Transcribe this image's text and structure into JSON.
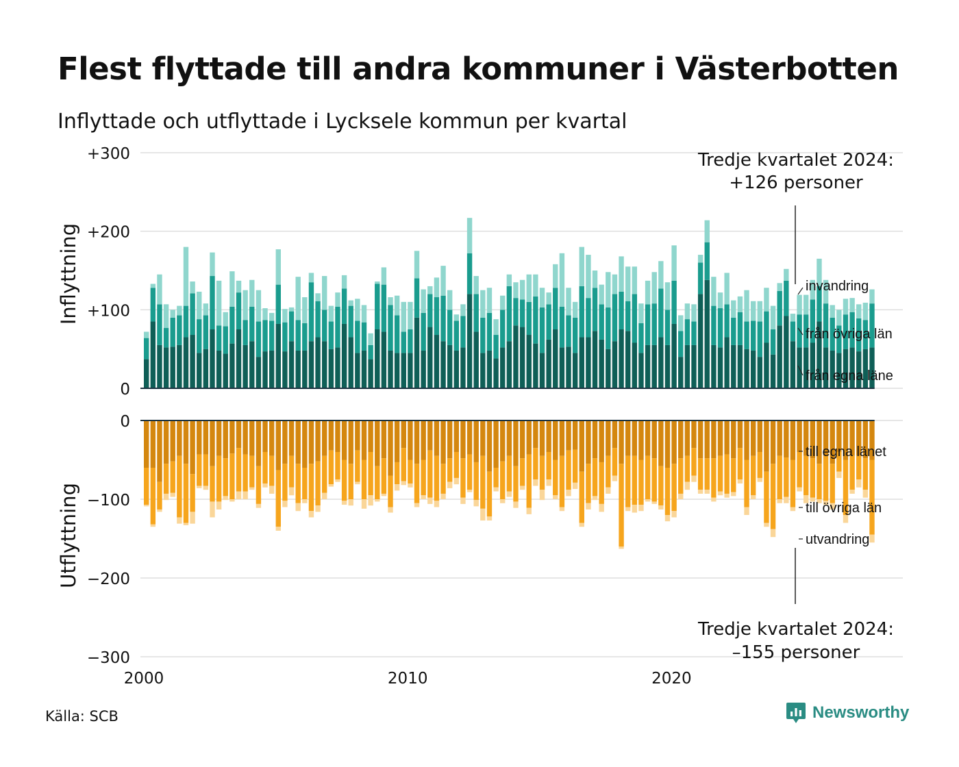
{
  "title": "Flest flyttade till andra kommuner i Västerbotten",
  "subtitle": "Inflyttade och utflyttade i Lycksele kommun per kvartal",
  "source": "Källa: SCB",
  "brand": "Newsworthy",
  "colors": {
    "in_egna": "#0f5f57",
    "in_ovriga": "#1a9c8e",
    "in_invandring": "#8fd6cd",
    "out_egna": "#d4870f",
    "out_ovriga": "#f6a51d",
    "out_utvandring": "#fad699",
    "grid": "#dedede",
    "brand": "#2a8c83"
  },
  "chart_data": {
    "type": "bar",
    "stacked": true,
    "x_unit": "quarter",
    "x_ticks": [
      "2000",
      "2010",
      "2020"
    ],
    "top": {
      "ylabel": "Inflyttning",
      "ylim": [
        0,
        300
      ],
      "yticks": [
        "0",
        "+100",
        "+200",
        "+300"
      ],
      "series_labels": [
        "invandring",
        "från övriga län",
        "från egna läne"
      ],
      "annotation": [
        "Tredje kvartalet 2024:",
        "+126 personer"
      ],
      "series": [
        {
          "name": "från egna läne",
          "values": [
            37,
            85,
            55,
            52,
            53,
            55,
            65,
            68,
            45,
            50,
            75,
            48,
            44,
            57,
            75,
            55,
            60,
            40,
            47,
            48,
            82,
            47,
            60,
            48,
            48,
            60,
            65,
            60,
            50,
            52,
            82,
            65,
            45,
            48,
            37,
            75,
            72,
            48,
            45,
            45,
            45,
            90,
            48,
            78,
            68,
            60,
            55,
            48,
            52,
            120,
            72,
            45,
            48,
            38,
            52,
            60,
            80,
            78,
            68,
            57,
            45,
            62,
            75,
            52,
            53,
            45,
            65,
            65,
            73,
            62,
            50,
            60,
            75,
            73,
            58,
            45,
            55,
            55,
            65,
            55,
            82,
            40,
            55,
            55,
            120,
            138,
            55,
            52,
            65,
            55,
            55,
            50,
            48,
            40,
            58,
            43,
            80,
            92,
            60,
            52,
            52,
            58,
            85,
            52,
            48,
            45,
            50,
            52,
            47,
            50,
            52
          ]
        },
        {
          "name": "från övriga län",
          "values": [
            27,
            43,
            52,
            25,
            37,
            38,
            40,
            53,
            43,
            43,
            68,
            32,
            35,
            47,
            47,
            32,
            44,
            45,
            40,
            38,
            50,
            37,
            38,
            39,
            35,
            75,
            46,
            40,
            35,
            52,
            45,
            40,
            41,
            36,
            18,
            58,
            60,
            58,
            48,
            27,
            30,
            50,
            48,
            42,
            48,
            58,
            45,
            38,
            40,
            52,
            48,
            45,
            48,
            30,
            48,
            70,
            35,
            35,
            42,
            60,
            58,
            45,
            53,
            52,
            40,
            45,
            65,
            50,
            55,
            45,
            53,
            60,
            48,
            38,
            62,
            38,
            52,
            53,
            62,
            45,
            55,
            33,
            33,
            30,
            40,
            48,
            50,
            50,
            42,
            35,
            42,
            35,
            38,
            45,
            40,
            32,
            44,
            45,
            25,
            42,
            42,
            55,
            45,
            56,
            42,
            35,
            44,
            45,
            42,
            37,
            56
          ]
        },
        {
          "name": "invandring",
          "values": [
            8,
            5,
            38,
            30,
            10,
            12,
            75,
            15,
            35,
            15,
            30,
            57,
            18,
            45,
            15,
            38,
            34,
            40,
            15,
            10,
            45,
            17,
            5,
            55,
            33,
            12,
            10,
            43,
            20,
            18,
            17,
            7,
            28,
            22,
            15,
            3,
            22,
            10,
            25,
            38,
            35,
            35,
            30,
            10,
            25,
            38,
            25,
            8,
            15,
            45,
            23,
            35,
            32,
            20,
            18,
            15,
            20,
            25,
            35,
            28,
            25,
            15,
            30,
            68,
            35,
            20,
            50,
            55,
            22,
            25,
            45,
            25,
            45,
            44,
            35,
            25,
            30,
            40,
            35,
            35,
            45,
            20,
            20,
            22,
            10,
            28,
            37,
            20,
            40,
            22,
            20,
            40,
            25,
            26,
            30,
            30,
            10,
            15,
            10,
            25,
            25,
            25,
            35,
            30,
            16,
            20,
            20,
            18,
            18,
            22,
            18
          ]
        }
      ]
    },
    "bottom": {
      "ylabel": "Utflyttning",
      "ylim": [
        -300,
        0
      ],
      "yticks": [
        "0",
        "−100",
        "−200",
        "−300"
      ],
      "series_labels": [
        "till egna länet",
        "till övriga län",
        "utvandring"
      ],
      "annotation": [
        "Tredje kvartalet 2024:",
        "–155 personer"
      ],
      "series": [
        {
          "name": "till egna länet",
          "values": [
            60,
            60,
            78,
            55,
            52,
            45,
            55,
            68,
            43,
            43,
            58,
            45,
            48,
            42,
            35,
            43,
            45,
            58,
            40,
            45,
            63,
            55,
            45,
            55,
            60,
            55,
            52,
            45,
            38,
            40,
            50,
            55,
            38,
            50,
            40,
            58,
            48,
            70,
            53,
            35,
            50,
            55,
            50,
            38,
            45,
            55,
            48,
            40,
            48,
            43,
            53,
            45,
            65,
            60,
            52,
            45,
            58,
            48,
            43,
            35,
            45,
            40,
            50,
            45,
            38,
            37,
            65,
            55,
            48,
            53,
            45,
            35,
            55,
            45,
            45,
            50,
            45,
            48,
            58,
            60,
            55,
            48,
            45,
            35,
            48,
            48,
            48,
            45,
            43,
            48,
            35,
            50,
            45,
            40,
            65,
            55,
            45,
            47,
            50,
            40,
            45,
            48,
            55,
            45,
            55,
            40,
            50,
            45,
            45,
            48,
            50
          ]
        },
        {
          "name": "till övriga län",
          "values": [
            47,
            72,
            35,
            38,
            40,
            78,
            75,
            48,
            40,
            40,
            45,
            58,
            48,
            58,
            55,
            47,
            40,
            48,
            40,
            38,
            72,
            47,
            40,
            50,
            40,
            60,
            56,
            47,
            43,
            35,
            52,
            45,
            40,
            50,
            55,
            42,
            45,
            40,
            28,
            42,
            30,
            50,
            45,
            60,
            57,
            38,
            30,
            33,
            50,
            45,
            48,
            67,
            57,
            25,
            48,
            45,
            45,
            35,
            68,
            40,
            43,
            35,
            45,
            65,
            50,
            42,
            65,
            50,
            48,
            53,
            40,
            35,
            105,
            65,
            62,
            57,
            55,
            55,
            50,
            60,
            60,
            45,
            33,
            35,
            40,
            40,
            50,
            45,
            50,
            43,
            40,
            60,
            50,
            33,
            65,
            83,
            55,
            50,
            60,
            45,
            50,
            50,
            45,
            57,
            50,
            25,
            70,
            43,
            30,
            40,
            95
          ]
        },
        {
          "name": "utvandring",
          "values": [
            2,
            3,
            3,
            8,
            5,
            8,
            3,
            15,
            3,
            5,
            20,
            10,
            5,
            3,
            10,
            10,
            3,
            5,
            5,
            10,
            5,
            8,
            10,
            10,
            5,
            8,
            8,
            8,
            3,
            3,
            5,
            8,
            3,
            12,
            13,
            3,
            3,
            7,
            8,
            5,
            5,
            5,
            5,
            8,
            8,
            7,
            8,
            8,
            8,
            3,
            8,
            15,
            5,
            5,
            5,
            7,
            8,
            5,
            8,
            8,
            13,
            8,
            5,
            5,
            8,
            8,
            5,
            8,
            5,
            10,
            8,
            7,
            3,
            5,
            10,
            8,
            3,
            3,
            5,
            8,
            8,
            7,
            10,
            8,
            5,
            5,
            5,
            5,
            5,
            5,
            5,
            10,
            5,
            5,
            5,
            10,
            5,
            8,
            5,
            5,
            10,
            5,
            5,
            5,
            8,
            8,
            10,
            5,
            10,
            10,
            10
          ]
        }
      ]
    }
  }
}
